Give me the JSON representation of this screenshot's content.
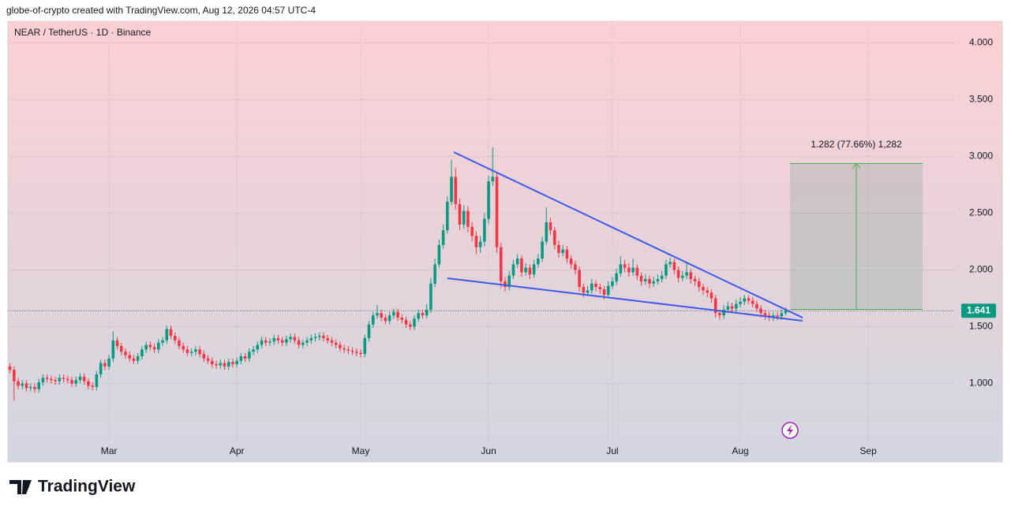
{
  "header": "globe-of-crypto created with TradingView.com, Aug 12, 2026 04:57 UTC-4",
  "brand": "TradingView",
  "chart_data": {
    "type": "candlestick",
    "title": "NEAR / TetherUS · 1D · Binance",
    "up_color": "#089981",
    "down_color": "#f23645",
    "grid": true,
    "measure_label": "1.282 (77.66%) 1,282",
    "xlim": [
      -0.5,
      240.5
    ],
    "xticks": [
      {
        "value": 24,
        "label": "Mar"
      },
      {
        "value": 55,
        "label": "Apr"
      },
      {
        "value": 85,
        "label": "May"
      },
      {
        "value": 116,
        "label": "Jun"
      },
      {
        "value": 146,
        "label": "Jul"
      },
      {
        "value": 177,
        "label": "Aug"
      },
      {
        "value": 208,
        "label": "Sep"
      }
    ],
    "ylim": [
      0.49,
      4.19
    ],
    "yticks": [
      {
        "value": 1,
        "label": "1.000"
      },
      {
        "value": 1.5,
        "label": "1.500"
      },
      {
        "value": 2,
        "label": "2.000"
      },
      {
        "value": 2.5,
        "label": "2.500"
      },
      {
        "value": 3,
        "label": "3.000"
      },
      {
        "value": 3.5,
        "label": "3.500"
      },
      {
        "value": 4,
        "label": "4.000"
      }
    ],
    "open": [
      1.15,
      1.12,
      1.02,
      0.98,
      1.0,
      0.96,
      0.97,
      0.95,
      1.01,
      1.05,
      1.04,
      1.03,
      1.02,
      1.05,
      1.04,
      1.03,
      1.0,
      1.03,
      1.06,
      1.02,
      0.98,
      0.97,
      1.08,
      1.18,
      1.15,
      1.22,
      1.38,
      1.33,
      1.28,
      1.25,
      1.22,
      1.2,
      1.24,
      1.3,
      1.34,
      1.32,
      1.3,
      1.36,
      1.38,
      1.48,
      1.42,
      1.38,
      1.33,
      1.3,
      1.27,
      1.28,
      1.3,
      1.26,
      1.22,
      1.2,
      1.17,
      1.16,
      1.18,
      1.15,
      1.19,
      1.17,
      1.2,
      1.24,
      1.22,
      1.28,
      1.3,
      1.34,
      1.38,
      1.36,
      1.37,
      1.4,
      1.38,
      1.36,
      1.39,
      1.41,
      1.38,
      1.34,
      1.36,
      1.38,
      1.4,
      1.41,
      1.42,
      1.4,
      1.38,
      1.36,
      1.34,
      1.31,
      1.3,
      1.29,
      1.28,
      1.27,
      1.26,
      1.4,
      1.52,
      1.6,
      1.62,
      1.58,
      1.55,
      1.6,
      1.63,
      1.58,
      1.56,
      1.52,
      1.5,
      1.57,
      1.62,
      1.6,
      1.65,
      1.88,
      2.05,
      2.22,
      2.35,
      2.6,
      2.82,
      2.58,
      2.4,
      2.52,
      2.38,
      2.3,
      2.2,
      2.25,
      2.45,
      2.78,
      2.82,
      2.2,
      1.9,
      1.85,
      1.95,
      2.05,
      2.1,
      1.98,
      2.02,
      1.96,
      2.05,
      2.1,
      2.25,
      2.42,
      2.35,
      2.22,
      2.15,
      2.18,
      2.1,
      2.05,
      2.0,
      1.85,
      1.8,
      1.82,
      1.88,
      1.85,
      1.83,
      1.78,
      1.86,
      1.9,
      1.97,
      2.05,
      2.02,
      1.98,
      2.02,
      1.95,
      1.9,
      1.92,
      1.88,
      1.9,
      1.92,
      1.95,
      2.05,
      2.07,
      2.0,
      1.93,
      1.95,
      1.98,
      1.92,
      1.9,
      1.85,
      1.82,
      1.8,
      1.75,
      1.62,
      1.6,
      1.65,
      1.68,
      1.66,
      1.7,
      1.72,
      1.75,
      1.73,
      1.7,
      1.66,
      1.62,
      1.6,
      1.58,
      1.6,
      1.59,
      1.62
    ],
    "high": [
      1.18,
      1.15,
      1.05,
      1.03,
      1.03,
      1.0,
      1.0,
      1.04,
      1.08,
      1.08,
      1.07,
      1.06,
      1.08,
      1.08,
      1.07,
      1.06,
      1.06,
      1.09,
      1.09,
      1.05,
      1.01,
      1.11,
      1.21,
      1.21,
      1.25,
      1.46,
      1.41,
      1.36,
      1.31,
      1.28,
      1.25,
      1.27,
      1.33,
      1.37,
      1.37,
      1.35,
      1.39,
      1.41,
      1.51,
      1.51,
      1.45,
      1.41,
      1.36,
      1.33,
      1.31,
      1.33,
      1.33,
      1.29,
      1.25,
      1.23,
      1.2,
      1.21,
      1.21,
      1.22,
      1.22,
      1.23,
      1.27,
      1.27,
      1.31,
      1.33,
      1.37,
      1.41,
      1.41,
      1.4,
      1.43,
      1.43,
      1.41,
      1.42,
      1.44,
      1.44,
      1.41,
      1.39,
      1.41,
      1.43,
      1.44,
      1.45,
      1.45,
      1.43,
      1.41,
      1.39,
      1.37,
      1.34,
      1.33,
      1.32,
      1.31,
      1.3,
      1.43,
      1.55,
      1.63,
      1.69,
      1.65,
      1.61,
      1.63,
      1.66,
      1.66,
      1.61,
      1.59,
      1.55,
      1.6,
      1.65,
      1.65,
      1.7,
      1.93,
      2.1,
      2.27,
      2.4,
      2.65,
      2.97,
      2.9,
      2.63,
      2.57,
      2.56,
      2.42,
      2.34,
      2.3,
      2.5,
      2.83,
      3.08,
      2.86,
      2.24,
      1.94,
      1.99,
      2.09,
      2.14,
      2.13,
      2.06,
      2.05,
      2.09,
      2.14,
      2.29,
      2.55,
      2.46,
      2.38,
      2.26,
      2.22,
      2.21,
      2.13,
      2.08,
      2.03,
      1.88,
      1.86,
      1.92,
      1.91,
      1.88,
      1.86,
      1.9,
      1.94,
      2.01,
      2.12,
      2.09,
      2.06,
      2.1,
      2.05,
      1.98,
      1.96,
      1.95,
      1.94,
      1.96,
      1.99,
      2.09,
      2.11,
      2.1,
      2.03,
      1.99,
      2.06,
      2.01,
      1.95,
      1.93,
      1.88,
      1.85,
      1.83,
      1.78,
      1.65,
      1.69,
      1.72,
      1.71,
      1.74,
      1.76,
      1.78,
      1.78,
      1.76,
      1.73,
      1.69,
      1.65,
      1.63,
      1.63,
      1.63,
      1.65,
      1.67
    ],
    "low": [
      1.09,
      0.85,
      0.95,
      0.95,
      0.93,
      0.93,
      0.92,
      0.92,
      0.98,
      1.01,
      1.0,
      0.99,
      0.99,
      1.01,
      1.0,
      0.97,
      0.97,
      1.0,
      0.99,
      0.95,
      0.94,
      0.94,
      1.05,
      1.12,
      1.12,
      1.19,
      1.3,
      1.25,
      1.22,
      1.19,
      1.17,
      1.17,
      1.21,
      1.27,
      1.29,
      1.27,
      1.27,
      1.33,
      1.35,
      1.39,
      1.35,
      1.3,
      1.27,
      1.24,
      1.24,
      1.25,
      1.23,
      1.19,
      1.17,
      1.14,
      1.13,
      1.13,
      1.12,
      1.12,
      1.14,
      1.14,
      1.17,
      1.19,
      1.19,
      1.25,
      1.27,
      1.31,
      1.33,
      1.33,
      1.34,
      1.35,
      1.33,
      1.33,
      1.36,
      1.35,
      1.31,
      1.31,
      1.33,
      1.35,
      1.37,
      1.38,
      1.37,
      1.35,
      1.33,
      1.31,
      1.28,
      1.27,
      1.26,
      1.25,
      1.24,
      1.23,
      1.23,
      1.37,
      1.49,
      1.57,
      1.55,
      1.52,
      1.52,
      1.57,
      1.55,
      1.53,
      1.49,
      1.47,
      1.47,
      1.54,
      1.57,
      1.57,
      1.62,
      1.85,
      2.02,
      2.19,
      2.32,
      2.57,
      2.53,
      2.35,
      2.36,
      2.33,
      2.25,
      2.14,
      2.15,
      2.21,
      2.41,
      2.74,
      2.15,
      1.84,
      1.81,
      1.82,
      1.92,
      2.02,
      1.94,
      1.95,
      1.92,
      1.93,
      2.02,
      2.07,
      2.22,
      2.31,
      2.18,
      2.11,
      2.12,
      2.06,
      2.01,
      1.96,
      1.81,
      1.76,
      1.77,
      1.79,
      1.81,
      1.79,
      1.74,
      1.75,
      1.83,
      1.87,
      1.94,
      1.98,
      1.94,
      1.95,
      1.91,
      1.86,
      1.87,
      1.84,
      1.85,
      1.87,
      1.89,
      1.92,
      2.02,
      1.96,
      1.89,
      1.9,
      1.92,
      1.88,
      1.86,
      1.81,
      1.78,
      1.76,
      1.71,
      1.58,
      1.56,
      1.57,
      1.62,
      1.62,
      1.63,
      1.67,
      1.69,
      1.7,
      1.67,
      1.63,
      1.58,
      1.56,
      1.55,
      1.55,
      1.56,
      1.56,
      1.6
    ],
    "close": [
      1.12,
      1.02,
      0.98,
      1.0,
      0.96,
      0.97,
      0.95,
      1.01,
      1.05,
      1.04,
      1.03,
      1.02,
      1.05,
      1.04,
      1.03,
      1.0,
      1.03,
      1.06,
      1.02,
      0.98,
      0.97,
      1.08,
      1.18,
      1.15,
      1.22,
      1.38,
      1.33,
      1.28,
      1.25,
      1.22,
      1.2,
      1.24,
      1.3,
      1.34,
      1.32,
      1.3,
      1.36,
      1.38,
      1.48,
      1.42,
      1.38,
      1.33,
      1.3,
      1.27,
      1.28,
      1.3,
      1.26,
      1.22,
      1.2,
      1.17,
      1.16,
      1.18,
      1.15,
      1.19,
      1.17,
      1.2,
      1.24,
      1.22,
      1.28,
      1.3,
      1.34,
      1.38,
      1.36,
      1.37,
      1.4,
      1.38,
      1.36,
      1.39,
      1.41,
      1.38,
      1.34,
      1.36,
      1.38,
      1.4,
      1.41,
      1.42,
      1.4,
      1.38,
      1.36,
      1.34,
      1.31,
      1.3,
      1.29,
      1.28,
      1.27,
      1.26,
      1.4,
      1.52,
      1.6,
      1.62,
      1.58,
      1.55,
      1.6,
      1.63,
      1.58,
      1.56,
      1.52,
      1.5,
      1.57,
      1.62,
      1.6,
      1.65,
      1.88,
      2.05,
      2.22,
      2.35,
      2.6,
      2.82,
      2.58,
      2.4,
      2.52,
      2.38,
      2.3,
      2.2,
      2.25,
      2.45,
      2.78,
      2.82,
      2.2,
      1.9,
      1.85,
      1.95,
      2.05,
      2.1,
      1.98,
      2.02,
      1.96,
      2.05,
      2.1,
      2.25,
      2.42,
      2.35,
      2.22,
      2.15,
      2.18,
      2.1,
      2.05,
      2.0,
      1.85,
      1.8,
      1.82,
      1.88,
      1.85,
      1.83,
      1.78,
      1.86,
      1.9,
      1.97,
      2.05,
      2.02,
      1.98,
      2.02,
      1.95,
      1.9,
      1.92,
      1.88,
      1.9,
      1.92,
      1.95,
      2.05,
      2.07,
      2.0,
      1.93,
      1.95,
      1.98,
      1.92,
      1.9,
      1.85,
      1.82,
      1.8,
      1.75,
      1.62,
      1.6,
      1.65,
      1.68,
      1.66,
      1.7,
      1.72,
      1.75,
      1.73,
      1.7,
      1.66,
      1.62,
      1.6,
      1.58,
      1.6,
      1.59,
      1.62,
      1.641
    ]
  }
}
